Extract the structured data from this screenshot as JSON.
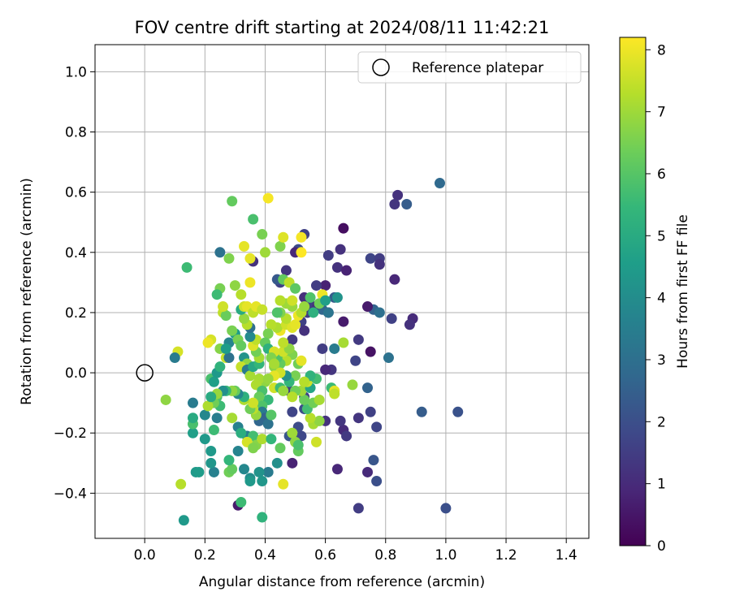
{
  "chart_data": {
    "type": "scatter",
    "title": "FOV centre drift starting at 2024/08/11 11:42:21",
    "xlabel": "Angular distance from reference (arcmin)",
    "ylabel": "Rotation from reference (arcmin)",
    "xlim": [
      -0.165,
      1.475
    ],
    "ylim": [
      -0.55,
      1.09
    ],
    "xticks": [
      0.0,
      0.2,
      0.4,
      0.6,
      0.8,
      1.0,
      1.2,
      1.4
    ],
    "xtick_labels": [
      "0.0",
      "0.2",
      "0.4",
      "0.6",
      "0.8",
      "1.0",
      "1.2",
      "1.4"
    ],
    "yticks": [
      -0.4,
      -0.2,
      0.0,
      0.2,
      0.4,
      0.6,
      0.8,
      1.0
    ],
    "ytick_labels": [
      "−0.4",
      "−0.2",
      "0.0",
      "0.2",
      "0.4",
      "0.6",
      "0.8",
      "1.0"
    ],
    "grid": true,
    "legend": {
      "position": "top-right",
      "entries": [
        "Reference platepar"
      ]
    },
    "reference_point": {
      "x": 0.0,
      "y": 0.0,
      "label": "Reference platepar"
    },
    "colorbar": {
      "label": "Hours from first FF file",
      "colormap": "viridis",
      "min": 0,
      "max": 8.2,
      "ticks": [
        0,
        1,
        2,
        3,
        4,
        5,
        6,
        7,
        8
      ],
      "tick_labels": [
        "0",
        "1",
        "2",
        "3",
        "4",
        "5",
        "6",
        "7",
        "8"
      ],
      "stops": [
        "#440154",
        "#482878",
        "#3e4989",
        "#31688e",
        "#26828e",
        "#1f9e89",
        "#35b779",
        "#6ece58",
        "#b5de2b",
        "#fde725"
      ]
    },
    "points": [
      [
        0.98,
        0.63,
        2.8
      ],
      [
        0.84,
        0.59,
        1.2
      ],
      [
        0.83,
        0.56,
        1.3
      ],
      [
        0.87,
        0.56,
        2.4
      ],
      [
        1.0,
        -0.45,
        2.0
      ],
      [
        1.04,
        -0.13,
        2.1
      ],
      [
        0.92,
        -0.13,
        2.4
      ],
      [
        0.71,
        -0.45,
        1.5
      ],
      [
        0.66,
        0.48,
        0.3
      ],
      [
        0.65,
        0.41,
        1.2
      ],
      [
        0.61,
        0.39,
        1.5
      ],
      [
        0.64,
        0.35,
        1.2
      ],
      [
        0.67,
        0.34,
        0.8
      ],
      [
        0.75,
        0.38,
        1.7
      ],
      [
        0.78,
        0.38,
        1.5
      ],
      [
        0.78,
        0.36,
        1.2
      ],
      [
        0.83,
        0.31,
        0.9
      ],
      [
        0.76,
        0.21,
        2.6
      ],
      [
        0.78,
        0.2,
        3.0
      ],
      [
        0.74,
        0.22,
        0.6
      ],
      [
        0.82,
        0.18,
        1.6
      ],
      [
        0.89,
        0.18,
        1.0
      ],
      [
        0.88,
        0.16,
        1.2
      ],
      [
        0.81,
        0.05,
        3.1
      ],
      [
        0.75,
        0.07,
        0.4
      ],
      [
        0.71,
        0.11,
        1.4
      ],
      [
        0.7,
        0.04,
        1.7
      ],
      [
        0.74,
        -0.05,
        2.6
      ],
      [
        0.75,
        -0.13,
        1.6
      ],
      [
        0.71,
        -0.15,
        1.3
      ],
      [
        0.77,
        -0.18,
        1.7
      ],
      [
        0.76,
        -0.29,
        2.2
      ],
      [
        0.77,
        -0.36,
        2.0
      ],
      [
        0.74,
        -0.33,
        1.0
      ],
      [
        0.64,
        -0.32,
        0.9
      ],
      [
        0.66,
        -0.19,
        1.0
      ],
      [
        0.67,
        -0.21,
        1.4
      ],
      [
        0.65,
        -0.16,
        1.3
      ],
      [
        0.6,
        -0.16,
        1.2
      ],
      [
        0.62,
        0.01,
        1.3
      ],
      [
        0.6,
        0.01,
        0.9
      ],
      [
        0.59,
        0.08,
        1.5
      ],
      [
        0.66,
        0.17,
        0.6
      ],
      [
        0.63,
        0.25,
        2.4
      ],
      [
        0.6,
        0.29,
        0.8
      ],
      [
        0.57,
        0.29,
        1.5
      ],
      [
        0.59,
        0.21,
        2.7
      ],
      [
        0.61,
        0.2,
        1.6
      ],
      [
        0.58,
        0.23,
        1.8
      ],
      [
        0.56,
        0.22,
        1.2
      ],
      [
        0.54,
        0.23,
        1.6
      ],
      [
        0.54,
        0.2,
        1.5
      ],
      [
        0.53,
        0.25,
        1.1
      ],
      [
        0.51,
        0.41,
        1.9
      ],
      [
        0.53,
        0.46,
        1.6
      ],
      [
        0.5,
        0.4,
        0.9
      ],
      [
        0.52,
        0.17,
        1.6
      ],
      [
        0.53,
        0.14,
        1.2
      ],
      [
        0.47,
        0.34,
        1.3
      ],
      [
        0.45,
        0.3,
        1.6
      ],
      [
        0.44,
        0.31,
        2.3
      ],
      [
        0.49,
        0.11,
        1.4
      ],
      [
        0.47,
        0.06,
        2.0
      ],
      [
        0.48,
        -0.06,
        1.5
      ],
      [
        0.49,
        -0.13,
        1.7
      ],
      [
        0.51,
        -0.18,
        1.9
      ],
      [
        0.48,
        -0.21,
        2.2
      ],
      [
        0.52,
        -0.21,
        1.8
      ],
      [
        0.53,
        -0.12,
        1.9
      ],
      [
        0.53,
        -0.08,
        1.6
      ],
      [
        0.49,
        -0.3,
        0.8
      ],
      [
        0.44,
        -0.3,
        4.1
      ],
      [
        0.41,
        -0.33,
        3.4
      ],
      [
        0.38,
        -0.33,
        4.2
      ],
      [
        0.35,
        -0.35,
        4.0
      ],
      [
        0.39,
        -0.36,
        4.3
      ],
      [
        0.35,
        -0.36,
        4.4
      ],
      [
        0.31,
        -0.44,
        0.6
      ],
      [
        0.32,
        -0.43,
        5.6
      ],
      [
        0.39,
        -0.48,
        5.3
      ],
      [
        0.13,
        -0.49,
        4.4
      ],
      [
        0.12,
        -0.37,
        7.3
      ],
      [
        0.17,
        -0.33,
        4.4
      ],
      [
        0.18,
        -0.33,
        4.5
      ],
      [
        0.23,
        -0.33,
        3.6
      ],
      [
        0.22,
        -0.3,
        4.3
      ],
      [
        0.28,
        -0.33,
        6.4
      ],
      [
        0.29,
        -0.32,
        6.2
      ],
      [
        0.33,
        -0.32,
        3.8
      ],
      [
        0.31,
        -0.26,
        3.7
      ],
      [
        0.28,
        -0.29,
        5.4
      ],
      [
        0.22,
        -0.26,
        4.4
      ],
      [
        0.2,
        -0.22,
        4.4
      ],
      [
        0.16,
        -0.2,
        4.6
      ],
      [
        0.16,
        -0.17,
        5.8
      ],
      [
        0.16,
        -0.15,
        5.0
      ],
      [
        0.16,
        -0.1,
        3.4
      ],
      [
        0.07,
        -0.09,
        6.8
      ],
      [
        0.2,
        -0.14,
        3.8
      ],
      [
        0.23,
        -0.19,
        5.6
      ],
      [
        0.24,
        -0.15,
        3.5
      ],
      [
        0.29,
        -0.15,
        7.1
      ],
      [
        0.31,
        -0.18,
        3.6
      ],
      [
        0.34,
        -0.21,
        3.4
      ],
      [
        0.32,
        -0.2,
        5.1
      ],
      [
        0.36,
        -0.21,
        5.7
      ],
      [
        0.37,
        -0.24,
        6.7
      ],
      [
        0.39,
        -0.22,
        7.2
      ],
      [
        0.34,
        -0.23,
        7.7
      ],
      [
        0.36,
        -0.25,
        6.6
      ],
      [
        0.42,
        -0.22,
        5.4
      ],
      [
        0.45,
        -0.25,
        6.2
      ],
      [
        0.46,
        -0.37,
        7.9
      ],
      [
        0.5,
        -0.23,
        6.8
      ],
      [
        0.51,
        -0.26,
        6.2
      ],
      [
        0.51,
        -0.24,
        5.8
      ],
      [
        0.49,
        -0.2,
        7.0
      ],
      [
        0.57,
        -0.23,
        7.6
      ],
      [
        0.56,
        -0.17,
        7.1
      ],
      [
        0.58,
        -0.16,
        6.8
      ],
      [
        0.55,
        -0.15,
        7.3
      ],
      [
        0.54,
        -0.12,
        5.7
      ],
      [
        0.56,
        -0.1,
        6.4
      ],
      [
        0.58,
        -0.09,
        7.1
      ],
      [
        0.53,
        -0.09,
        6.3
      ],
      [
        0.52,
        -0.06,
        7.0
      ],
      [
        0.5,
        -0.06,
        6.4
      ],
      [
        0.49,
        -0.08,
        7.3
      ],
      [
        0.55,
        -0.05,
        4.8
      ],
      [
        0.54,
        -0.03,
        7.6
      ],
      [
        0.5,
        -0.01,
        6.5
      ],
      [
        0.51,
        0.03,
        6.4
      ],
      [
        0.52,
        0.04,
        7.9
      ],
      [
        0.49,
        0.06,
        6.6
      ],
      [
        0.47,
        0.04,
        7.3
      ],
      [
        0.45,
        0.03,
        6.2
      ],
      [
        0.43,
        0.02,
        6.7
      ],
      [
        0.44,
        0.05,
        5.9
      ],
      [
        0.46,
        0.07,
        7.6
      ],
      [
        0.48,
        0.08,
        6.8
      ],
      [
        0.46,
        0.1,
        7.4
      ],
      [
        0.45,
        0.14,
        8.0
      ],
      [
        0.44,
        0.15,
        7.2
      ],
      [
        0.47,
        0.16,
        7.6
      ],
      [
        0.49,
        0.15,
        7.8
      ],
      [
        0.47,
        0.18,
        7.3
      ],
      [
        0.5,
        0.16,
        7.9
      ],
      [
        0.51,
        0.19,
        8.0
      ],
      [
        0.52,
        0.2,
        7.3
      ],
      [
        0.49,
        0.22,
        6.9
      ],
      [
        0.47,
        0.23,
        7.0
      ],
      [
        0.45,
        0.24,
        7.3
      ],
      [
        0.45,
        0.2,
        6.6
      ],
      [
        0.44,
        0.2,
        5.9
      ],
      [
        0.46,
        0.31,
        6.2
      ],
      [
        0.48,
        0.3,
        7.4
      ],
      [
        0.5,
        0.28,
        6.1
      ],
      [
        0.49,
        0.24,
        7.6
      ],
      [
        0.53,
        0.22,
        6.9
      ],
      [
        0.55,
        0.25,
        5.9
      ],
      [
        0.59,
        0.26,
        8.0
      ],
      [
        0.58,
        0.23,
        6.4
      ],
      [
        0.6,
        0.24,
        4.6
      ],
      [
        0.56,
        0.2,
        5.2
      ],
      [
        0.64,
        0.25,
        4.2
      ],
      [
        0.61,
        0.2,
        3.2
      ],
      [
        0.63,
        0.08,
        3.4
      ],
      [
        0.66,
        0.1,
        7.1
      ],
      [
        0.69,
        -0.04,
        6.9
      ],
      [
        0.62,
        -0.05,
        5.6
      ],
      [
        0.63,
        -0.06,
        7.9
      ],
      [
        0.63,
        -0.07,
        7.4
      ],
      [
        0.57,
        -0.02,
        5.7
      ],
      [
        0.55,
        -0.01,
        5.3
      ],
      [
        0.53,
        -0.03,
        7.3
      ],
      [
        0.48,
        -0.03,
        5.4
      ],
      [
        0.47,
        -0.01,
        4.1
      ],
      [
        0.45,
        0.0,
        7.6
      ],
      [
        0.43,
        -0.01,
        7.9
      ],
      [
        0.4,
        -0.03,
        6.8
      ],
      [
        0.38,
        -0.02,
        7.1
      ],
      [
        0.37,
        -0.04,
        7.2
      ],
      [
        0.39,
        -0.06,
        5.8
      ],
      [
        0.41,
        -0.09,
        5.5
      ],
      [
        0.38,
        -0.08,
        6.3
      ],
      [
        0.39,
        -0.11,
        5.9
      ],
      [
        0.39,
        -0.13,
        3.4
      ],
      [
        0.4,
        -0.15,
        2.6
      ],
      [
        0.38,
        -0.16,
        2.7
      ],
      [
        0.41,
        -0.17,
        3.1
      ],
      [
        0.42,
        -0.14,
        6.0
      ],
      [
        0.37,
        -0.14,
        6.9
      ],
      [
        0.36,
        -0.12,
        7.4
      ],
      [
        0.35,
        -0.12,
        6.4
      ],
      [
        0.36,
        -0.1,
        7.6
      ],
      [
        0.33,
        -0.09,
        7.2
      ],
      [
        0.33,
        -0.08,
        5.2
      ],
      [
        0.31,
        -0.07,
        3.8
      ],
      [
        0.3,
        -0.06,
        6.2
      ],
      [
        0.29,
        -0.06,
        6.8
      ],
      [
        0.27,
        -0.06,
        5.5
      ],
      [
        0.26,
        -0.06,
        4.1
      ],
      [
        0.24,
        -0.08,
        5.9
      ],
      [
        0.25,
        -0.11,
        5.6
      ],
      [
        0.23,
        -0.1,
        6.4
      ],
      [
        0.24,
        -0.07,
        6.9
      ],
      [
        0.21,
        -0.11,
        7.2
      ],
      [
        0.22,
        -0.08,
        5.0
      ],
      [
        0.22,
        -0.02,
        5.8
      ],
      [
        0.23,
        -0.03,
        4.6
      ],
      [
        0.24,
        0.0,
        4.4
      ],
      [
        0.25,
        0.02,
        5.3
      ],
      [
        0.25,
        0.08,
        6.7
      ],
      [
        0.27,
        0.05,
        7.5
      ],
      [
        0.28,
        0.05,
        3.1
      ],
      [
        0.28,
        0.1,
        3.7
      ],
      [
        0.3,
        0.13,
        4.5
      ],
      [
        0.31,
        0.11,
        6.5
      ],
      [
        0.32,
        0.09,
        6.2
      ],
      [
        0.33,
        0.05,
        4.2
      ],
      [
        0.34,
        0.03,
        6.8
      ],
      [
        0.32,
        0.02,
        7.5
      ],
      [
        0.34,
        0.01,
        3.4
      ],
      [
        0.35,
        -0.01,
        7.1
      ],
      [
        0.36,
        0.02,
        4.9
      ],
      [
        0.38,
        0.03,
        5.4
      ],
      [
        0.38,
        0.05,
        7.1
      ],
      [
        0.37,
        0.07,
        6.4
      ],
      [
        0.36,
        0.09,
        7.8
      ],
      [
        0.37,
        0.11,
        7.4
      ],
      [
        0.35,
        0.12,
        3.9
      ],
      [
        0.35,
        0.15,
        3.0
      ],
      [
        0.34,
        0.16,
        7.3
      ],
      [
        0.33,
        0.18,
        6.9
      ],
      [
        0.32,
        0.21,
        5.0
      ],
      [
        0.33,
        0.22,
        7.6
      ],
      [
        0.34,
        0.22,
        7.9
      ],
      [
        0.36,
        0.2,
        7.4
      ],
      [
        0.37,
        0.22,
        7.9
      ],
      [
        0.39,
        0.21,
        7.5
      ],
      [
        0.42,
        0.16,
        7.3
      ],
      [
        0.41,
        0.13,
        6.5
      ],
      [
        0.4,
        0.1,
        6.2
      ],
      [
        0.41,
        0.08,
        5.2
      ],
      [
        0.43,
        0.07,
        7.7
      ],
      [
        0.42,
        0.05,
        6.6
      ],
      [
        0.43,
        0.03,
        7.1
      ],
      [
        0.41,
        -0.02,
        6.9
      ],
      [
        0.43,
        -0.05,
        7.6
      ],
      [
        0.45,
        -0.05,
        5.6
      ],
      [
        0.46,
        -0.06,
        6.9
      ],
      [
        0.3,
        0.29,
        6.8
      ],
      [
        0.32,
        0.26,
        7.3
      ],
      [
        0.35,
        0.3,
        8.0
      ],
      [
        0.36,
        0.37,
        1.2
      ],
      [
        0.35,
        0.38,
        7.9
      ],
      [
        0.33,
        0.42,
        7.9
      ],
      [
        0.28,
        0.38,
        6.6
      ],
      [
        0.25,
        0.4,
        3.1
      ],
      [
        0.4,
        0.4,
        7.0
      ],
      [
        0.36,
        0.51,
        5.8
      ],
      [
        0.39,
        0.46,
        6.5
      ],
      [
        0.41,
        0.58,
        8.1
      ],
      [
        0.29,
        0.57,
        6.2
      ],
      [
        0.45,
        0.42,
        6.6
      ],
      [
        0.46,
        0.45,
        7.8
      ],
      [
        0.52,
        0.45,
        8.1
      ],
      [
        0.52,
        0.4,
        8.2
      ],
      [
        0.25,
        0.28,
        6.5
      ],
      [
        0.24,
        0.26,
        5.6
      ],
      [
        0.26,
        0.2,
        7.4
      ],
      [
        0.27,
        0.19,
        6.3
      ],
      [
        0.26,
        0.22,
        7.6
      ],
      [
        0.22,
        0.11,
        7.7
      ],
      [
        0.21,
        0.1,
        8.0
      ],
      [
        0.14,
        0.35,
        5.6
      ],
      [
        0.11,
        0.07,
        7.7
      ],
      [
        0.1,
        0.05,
        3.4
      ],
      [
        0.29,
        0.14,
        6.5
      ],
      [
        0.27,
        0.08,
        4.5
      ]
    ]
  }
}
